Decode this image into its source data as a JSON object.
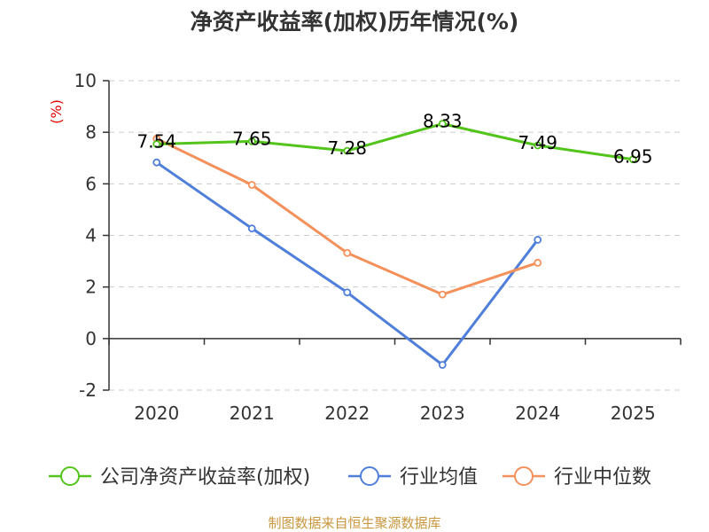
{
  "chart_data": {
    "type": "line",
    "title": "净资产收益率(加权)历年情况(%)",
    "ylabel": "(%)",
    "xlabel": "",
    "categories": [
      "2020",
      "2021",
      "2022",
      "2023",
      "2024",
      "2025"
    ],
    "ylim": [
      -2,
      10
    ],
    "yticks": [
      -2,
      0,
      2,
      4,
      6,
      8,
      10
    ],
    "grid": true,
    "legend_position": "bottom",
    "series": [
      {
        "name": "公司净资产收益率(加权)",
        "color": "#52c41a",
        "values": [
          7.54,
          7.65,
          7.28,
          8.33,
          7.49,
          6.95
        ],
        "labels": [
          "7.54",
          "7.65",
          "7.28",
          "8.33",
          "7.49",
          "6.95"
        ]
      },
      {
        "name": "行业均值",
        "color": "#4f7fdb",
        "values": [
          6.83,
          4.27,
          1.79,
          -1.02,
          3.83,
          null
        ]
      },
      {
        "name": "行业中位数",
        "color": "#f4905a",
        "values": [
          7.75,
          5.96,
          3.32,
          1.71,
          2.94,
          null
        ]
      }
    ],
    "source": "制图数据来自恒生聚源数据库"
  },
  "colors": {
    "title": "#333333",
    "axis": "#333333",
    "grid": "#cccccc",
    "ylabel": "#e00000",
    "source": "#c8963c"
  }
}
